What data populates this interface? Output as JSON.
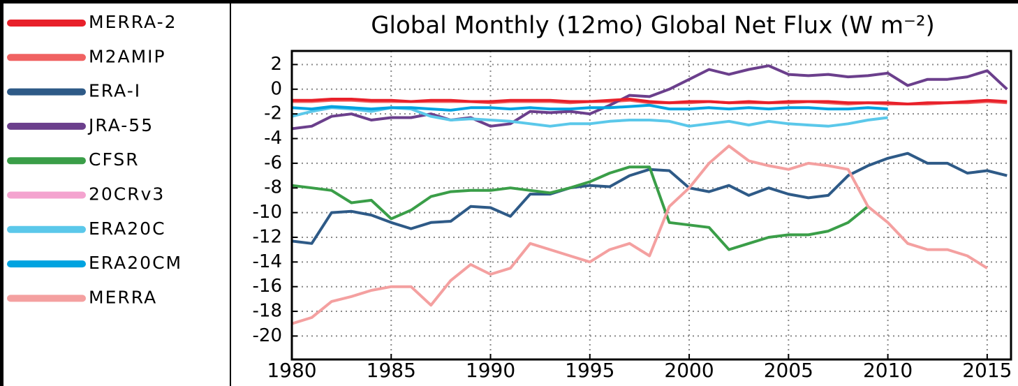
{
  "chart_data": {
    "type": "line",
    "title": "Global Monthly (12mo) Global Net Flux (W m⁻²)",
    "x": [
      1980,
      1981,
      1982,
      1983,
      1984,
      1985,
      1986,
      1987,
      1988,
      1989,
      1990,
      1991,
      1992,
      1993,
      1994,
      1995,
      1996,
      1997,
      1998,
      1999,
      2000,
      2001,
      2002,
      2003,
      2004,
      2005,
      2006,
      2007,
      2008,
      2009,
      2010,
      2011,
      2012,
      2013,
      2014,
      2015,
      2016
    ],
    "xlim": [
      1980,
      2016.2
    ],
    "xticks": [
      1980,
      1985,
      1990,
      1995,
      2000,
      2005,
      2010,
      2015
    ],
    "ylim": [
      -21.9,
      3.1
    ],
    "yticks": [
      2,
      0,
      -2,
      -4,
      -6,
      -8,
      -10,
      -12,
      -14,
      -16,
      -18,
      -20
    ],
    "grid": true,
    "series": [
      {
        "name": "MERRA-2",
        "color": "#e8202a",
        "values": [
          -0.9,
          -0.9,
          -0.8,
          -0.8,
          -0.9,
          -0.9,
          -1.0,
          -0.9,
          -0.9,
          -1.0,
          -1.0,
          -0.9,
          -0.9,
          -0.9,
          -1.0,
          -1.0,
          -0.9,
          -0.8,
          -1.0,
          -1.1,
          -1.0,
          -1.0,
          -1.1,
          -1.0,
          -1.1,
          -1.0,
          -1.0,
          -1.0,
          -1.1,
          -1.1,
          -1.1,
          -1.2,
          -1.1,
          -1.1,
          -1.0,
          -0.9,
          -1.0
        ]
      },
      {
        "name": "M2AMIP",
        "color": "#f06262",
        "values": [
          -1.0,
          -1.0,
          -0.9,
          -0.9,
          -1.0,
          -1.0,
          -1.0,
          -1.0,
          -1.0,
          -1.0,
          -1.1,
          -1.0,
          -1.0,
          -1.0,
          -1.1,
          -1.0,
          -1.0,
          -0.9,
          -1.1,
          -1.1,
          -1.1,
          -1.0,
          -1.1,
          -1.1,
          -1.1,
          -1.1,
          -1.0,
          -1.1,
          -1.2,
          -1.1,
          -1.2,
          -1.2,
          -1.2,
          -1.1,
          -1.1,
          -1.0,
          -1.1
        ]
      },
      {
        "name": "ERA-I",
        "color": "#2e5a87",
        "values": [
          -12.3,
          -12.5,
          -10.0,
          -9.9,
          -10.2,
          -10.8,
          -11.3,
          -10.8,
          -10.7,
          -9.5,
          -9.6,
          -10.3,
          -8.5,
          -8.5,
          -8.0,
          -7.8,
          -7.9,
          -7.0,
          -6.5,
          -6.6,
          -8.0,
          -8.3,
          -7.8,
          -8.6,
          -8.0,
          -8.5,
          -8.8,
          -8.6,
          -7.0,
          -6.2,
          -5.6,
          -5.2,
          -6.0,
          -6.0,
          -6.8,
          -6.6,
          -7.0
        ]
      },
      {
        "name": "JRA-55",
        "color": "#6b3f8c",
        "values": [
          -3.2,
          -3.0,
          -2.2,
          -2.0,
          -2.5,
          -2.3,
          -2.3,
          -2.0,
          -2.5,
          -2.3,
          -3.0,
          -2.8,
          -1.8,
          -1.9,
          -1.8,
          -2.0,
          -1.3,
          -0.5,
          -0.6,
          0.0,
          0.8,
          1.6,
          1.2,
          1.6,
          1.9,
          1.2,
          1.1,
          1.2,
          1.0,
          1.1,
          1.3,
          0.3,
          0.8,
          0.8,
          1.0,
          1.5,
          0.0
        ]
      },
      {
        "name": "CFSR",
        "color": "#3a9e48",
        "values": [
          -7.8,
          -8.0,
          -8.2,
          -9.2,
          -9.0,
          -10.5,
          -9.8,
          -8.7,
          -8.3,
          -8.2,
          -8.2,
          -8.0,
          -8.2,
          -8.4,
          -8.0,
          -7.5,
          -6.8,
          -6.3,
          -6.3,
          -10.8,
          -11.0,
          -11.2,
          -13.0,
          -12.5,
          -12.0,
          -11.8,
          -11.8,
          -11.5,
          -10.8,
          -9.5,
          null,
          null,
          null,
          null,
          null,
          null,
          null
        ]
      },
      {
        "name": "20CRv3",
        "color": "#f4a3cf",
        "values": [
          null,
          null,
          null,
          null,
          null,
          null,
          null,
          null,
          null,
          null,
          null,
          null,
          null,
          null,
          null,
          null,
          null,
          null,
          null,
          null,
          null,
          null,
          null,
          null,
          null,
          null,
          null,
          null,
          null,
          null,
          null,
          null,
          null,
          null,
          null,
          null,
          null
        ]
      },
      {
        "name": "ERA20C",
        "color": "#5bc8ea",
        "values": [
          -2.2,
          -1.8,
          -1.5,
          -1.6,
          -1.8,
          -1.5,
          -1.6,
          -2.2,
          -2.5,
          -2.4,
          -2.5,
          -2.6,
          -2.8,
          -3.0,
          -2.8,
          -2.8,
          -2.6,
          -2.5,
          -2.5,
          -2.6,
          -3.0,
          -2.8,
          -2.6,
          -2.9,
          -2.6,
          -2.8,
          -2.9,
          -3.0,
          -2.8,
          -2.5,
          -2.3,
          null,
          null,
          null,
          null,
          null,
          null
        ]
      },
      {
        "name": "ERA20CM",
        "color": "#00a3e0",
        "values": [
          -1.5,
          -1.6,
          -1.4,
          -1.5,
          -1.6,
          -1.5,
          -1.5,
          -1.6,
          -1.7,
          -1.5,
          -1.5,
          -1.6,
          -1.5,
          -1.6,
          -1.6,
          -1.5,
          -1.5,
          -1.4,
          -1.3,
          -1.6,
          -1.6,
          -1.5,
          -1.6,
          -1.5,
          -1.6,
          -1.5,
          -1.5,
          -1.6,
          -1.6,
          -1.5,
          -1.6,
          null,
          null,
          null,
          null,
          null,
          null
        ]
      },
      {
        "name": "MERRA",
        "color": "#f4a0a0",
        "values": [
          -19.0,
          -18.5,
          -17.2,
          -16.8,
          -16.3,
          -16.0,
          -16.0,
          -17.5,
          -15.5,
          -14.2,
          -15.0,
          -14.5,
          -12.5,
          -13.0,
          -13.5,
          -14.0,
          -13.0,
          -12.5,
          -13.5,
          -9.5,
          -8.0,
          -6.0,
          -4.6,
          -5.8,
          -6.2,
          -6.5,
          -6.0,
          -6.2,
          -6.5,
          -9.5,
          -10.8,
          -12.5,
          -13.0,
          -13.0,
          -13.5,
          -14.5,
          null
        ]
      }
    ]
  }
}
